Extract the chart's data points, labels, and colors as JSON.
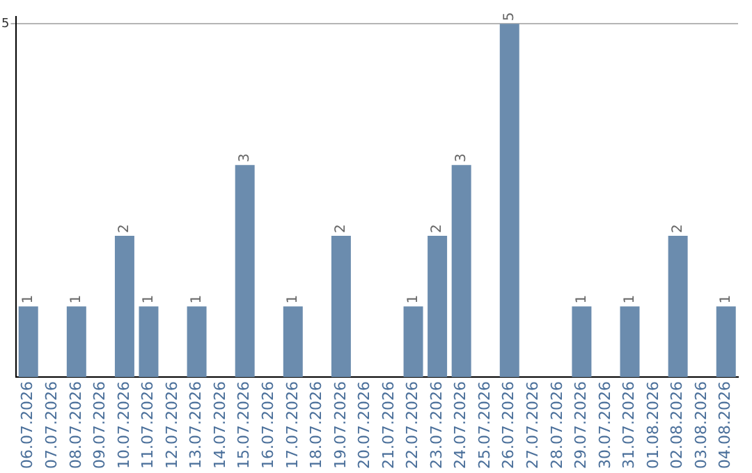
{
  "chart_data": {
    "type": "bar",
    "categories": [
      "06.07.2026",
      "07.07.2026",
      "08.07.2026",
      "09.07.2026",
      "10.07.2026",
      "11.07.2026",
      "12.07.2026",
      "13.07.2026",
      "14.07.2026",
      "15.07.2026",
      "16.07.2026",
      "17.07.2026",
      "18.07.2026",
      "19.07.2026",
      "20.07.2026",
      "21.07.2026",
      "22.07.2026",
      "23.07.2026",
      "24.07.2026",
      "25.07.2026",
      "26.07.2026",
      "27.07.2026",
      "28.07.2026",
      "29.07.2026",
      "30.07.2026",
      "31.07.2026",
      "01.08.2026",
      "02.08.2026",
      "03.08.2026",
      "04.08.2026"
    ],
    "values": [
      1,
      0,
      1,
      0,
      2,
      1,
      0,
      1,
      0,
      3,
      0,
      1,
      0,
      2,
      0,
      0,
      1,
      2,
      3,
      0,
      5,
      0,
      0,
      1,
      0,
      1,
      0,
      2,
      0,
      1
    ],
    "value_labels": [
      "1",
      null,
      "1",
      null,
      "2",
      "1",
      null,
      "1",
      null,
      "3",
      null,
      "1",
      null,
      "2",
      null,
      null,
      "1",
      "2",
      "3",
      null,
      "5",
      null,
      null,
      "1",
      null,
      "1",
      null,
      "2",
      null,
      "1"
    ],
    "color": "#6b8cae",
    "ylim": [
      0,
      5.1
    ],
    "yticks": [
      5
    ],
    "grid": "y",
    "legend": false
  }
}
